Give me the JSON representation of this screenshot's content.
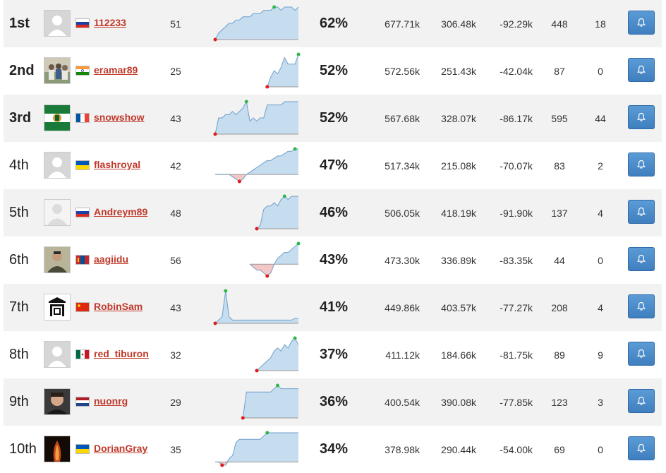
{
  "leaderboard": [
    {
      "rank": "1st",
      "name": "112233",
      "flag": "ru",
      "avatar": "default",
      "games": "51",
      "pct": "62%",
      "v1": "677.71k",
      "v2": "306.48k",
      "v3": "-92.29k",
      "v4": "448",
      "v5": "18",
      "trend": [
        0,
        2,
        3,
        4,
        5,
        5,
        6,
        6,
        7,
        7,
        7,
        8,
        8,
        8,
        9,
        9,
        9,
        10,
        10,
        9,
        10,
        10,
        10,
        9,
        10
      ]
    },
    {
      "rank": "2nd",
      "name": "eramar89",
      "flag": "in",
      "avatar": "photo-group",
      "games": "25",
      "pct": "52%",
      "v1": "572.56k",
      "v2": "251.43k",
      "v3": "-42.04k",
      "v4": "87",
      "v5": "0",
      "trend": [
        null,
        null,
        null,
        null,
        null,
        null,
        null,
        null,
        null,
        null,
        null,
        null,
        null,
        null,
        null,
        0,
        3,
        5,
        4,
        6,
        9,
        7,
        7,
        7,
        10
      ]
    },
    {
      "rank": "3rd",
      "name": "snowshow",
      "flag": "fr",
      "avatar": "flag-emblem",
      "games": "43",
      "pct": "52%",
      "v1": "567.68k",
      "v2": "328.07k",
      "v3": "-86.17k",
      "v4": "595",
      "v5": "44",
      "trend": [
        0,
        5,
        5,
        6,
        6,
        7,
        6,
        7,
        8,
        10,
        4,
        5,
        4,
        5,
        5,
        9,
        9,
        9,
        9,
        9,
        10,
        10,
        10,
        10,
        10
      ]
    },
    {
      "rank": "4th",
      "name": "flashroyal",
      "flag": "ua",
      "avatar": "default",
      "games": "42",
      "pct": "47%",
      "v1": "517.34k",
      "v2": "215.08k",
      "v3": "-70.07k",
      "v4": "83",
      "v5": "2",
      "trend": [
        0,
        0,
        0,
        0,
        0,
        -1,
        -2,
        -3,
        -2,
        0,
        1,
        2,
        3,
        4,
        5,
        6,
        6,
        7,
        8,
        8,
        9,
        10,
        10,
        11,
        11
      ]
    },
    {
      "rank": "5th",
      "name": "Andreym89",
      "flag": "ru",
      "avatar": "silhouette",
      "games": "48",
      "pct": "46%",
      "v1": "506.05k",
      "v2": "418.19k",
      "v3": "-91.90k",
      "v4": "137",
      "v5": "4",
      "trend": [
        null,
        null,
        null,
        null,
        null,
        null,
        null,
        null,
        null,
        null,
        null,
        null,
        0,
        1,
        6,
        7,
        7,
        8,
        7,
        9,
        10,
        9,
        10,
        10,
        10
      ]
    },
    {
      "rank": "6th",
      "name": "aagiidu",
      "flag": "mn",
      "avatar": "photo-man",
      "games": "56",
      "pct": "43%",
      "v1": "473.30k",
      "v2": "336.89k",
      "v3": "-83.35k",
      "v4": "44",
      "v5": "0",
      "trend": [
        null,
        null,
        null,
        null,
        null,
        null,
        null,
        null,
        null,
        null,
        0,
        -1,
        -2,
        -2,
        -3,
        -4,
        -3,
        0,
        2,
        3,
        4,
        4,
        5,
        6,
        7
      ]
    },
    {
      "rank": "7th",
      "name": "RobinSam",
      "flag": "cn",
      "avatar": "logo",
      "games": "43",
      "pct": "41%",
      "v1": "449.86k",
      "v2": "403.57k",
      "v3": "-77.27k",
      "v4": "208",
      "v5": "4",
      "trend": [
        0,
        1,
        2,
        10,
        2,
        1,
        1,
        1,
        1,
        1,
        1,
        1,
        1,
        1,
        1,
        1,
        1,
        1,
        1,
        1,
        1,
        1,
        1,
        1.5,
        1.5
      ]
    },
    {
      "rank": "8th",
      "name": "red_tiburon",
      "flag": "mx",
      "avatar": "default",
      "games": "32",
      "pct": "37%",
      "v1": "411.12k",
      "v2": "184.66k",
      "v3": "-81.75k",
      "v4": "89",
      "v5": "9",
      "trend": [
        null,
        null,
        null,
        null,
        null,
        null,
        null,
        null,
        null,
        null,
        null,
        null,
        0,
        1,
        2,
        3,
        4,
        6,
        7,
        6,
        8,
        7,
        9,
        10,
        8
      ]
    },
    {
      "rank": "9th",
      "name": "nuonrg",
      "flag": "nl",
      "avatar": "photo-face",
      "games": "29",
      "pct": "36%",
      "v1": "400.54k",
      "v2": "390.08k",
      "v3": "-77.85k",
      "v4": "123",
      "v5": "3",
      "trend": [
        null,
        null,
        null,
        null,
        null,
        null,
        null,
        null,
        0,
        8,
        8,
        8,
        8,
        8,
        8,
        8,
        8,
        9,
        10,
        9,
        9,
        9,
        9,
        9,
        9
      ]
    },
    {
      "rank": "10th",
      "name": "DorianGray",
      "flag": "ua",
      "avatar": "photo-dark",
      "games": "35",
      "pct": "34%",
      "v1": "378.98k",
      "v2": "290.44k",
      "v3": "-54.00k",
      "v4": "69",
      "v5": "0",
      "trend": [
        0,
        0,
        -1,
        -1,
        1,
        2,
        6,
        7,
        7,
        7,
        7,
        7,
        7,
        7,
        8,
        9,
        9,
        9,
        9,
        9,
        9,
        9,
        9,
        9,
        9
      ]
    }
  ],
  "colors": {
    "positive_fill": "#c6dcef",
    "positive_line": "#6fa0cc",
    "negative_fill": "#f5c6c6",
    "negative_line": "#d98080",
    "max_dot": "#2db84a",
    "min_dot": "#e01c1c",
    "name": "#c0392b",
    "button": "#4a8bc9"
  },
  "icons": {
    "action": "bell-icon"
  }
}
